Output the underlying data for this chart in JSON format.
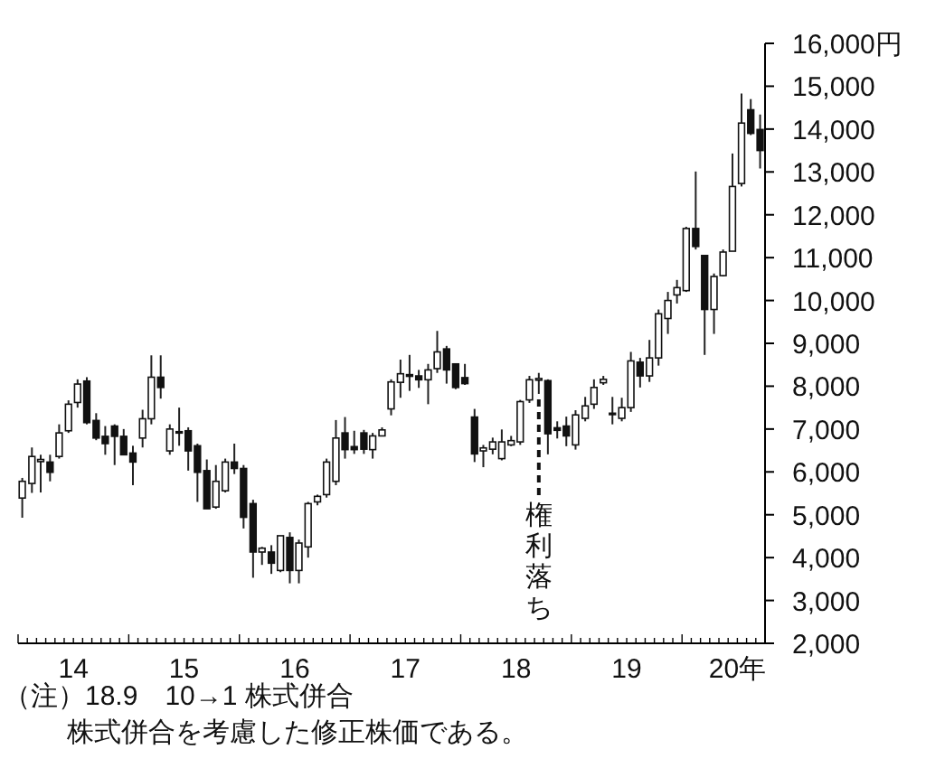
{
  "chart_data": {
    "type": "candlestick",
    "x": [
      "2014-01-15",
      "2014-02-15",
      "2014-03-15",
      "2014-04-15",
      "2014-05-15",
      "2014-06-15",
      "2014-07-15",
      "2014-08-15",
      "2014-09-15",
      "2014-10-15",
      "2014-11-15",
      "2014-12-15",
      "2015-01-15",
      "2015-02-15",
      "2015-03-15",
      "2015-04-15",
      "2015-05-15",
      "2015-06-15",
      "2015-07-15",
      "2015-08-15",
      "2015-09-15",
      "2015-10-15",
      "2015-11-15",
      "2015-12-15",
      "2016-01-15",
      "2016-02-15",
      "2016-03-15",
      "2016-04-15",
      "2016-05-15",
      "2016-06-15",
      "2016-07-15",
      "2016-08-15",
      "2016-09-15",
      "2016-10-15",
      "2016-11-15",
      "2016-12-15",
      "2017-01-15",
      "2017-02-15",
      "2017-03-15",
      "2017-04-15",
      "2017-05-15",
      "2017-06-15",
      "2017-07-15",
      "2017-08-15",
      "2017-09-15",
      "2017-10-15",
      "2017-11-15",
      "2017-12-15",
      "2018-01-15",
      "2018-02-15",
      "2018-03-15",
      "2018-04-15",
      "2018-05-15",
      "2018-06-15",
      "2018-07-15",
      "2018-08-15",
      "2018-09-15",
      "2018-10-15",
      "2018-11-15",
      "2018-12-15",
      "2019-01-15",
      "2019-02-15",
      "2019-03-15",
      "2019-04-15",
      "2019-05-15",
      "2019-06-15",
      "2019-07-15",
      "2019-08-15",
      "2019-09-15",
      "2019-10-15",
      "2019-11-15",
      "2019-12-15",
      "2020-01-15",
      "2020-02-15",
      "2020-03-15",
      "2020-04-15",
      "2020-05-15",
      "2020-06-15",
      "2020-07-15",
      "2020-08-15",
      "2020-09-15"
    ],
    "ohlc": [
      [
        5390,
        5860,
        4930,
        5780
      ],
      [
        5730,
        6570,
        5510,
        6360
      ],
      [
        6240,
        6400,
        5520,
        6290
      ],
      [
        6230,
        6400,
        5780,
        5990
      ],
      [
        6360,
        7110,
        6310,
        6910
      ],
      [
        6960,
        7670,
        6910,
        7580
      ],
      [
        7620,
        8160,
        7500,
        8050
      ],
      [
        8120,
        8210,
        7110,
        7150
      ],
      [
        7200,
        7370,
        6740,
        6790
      ],
      [
        6830,
        7070,
        6400,
        6660
      ],
      [
        7070,
        7110,
        6160,
        6830
      ],
      [
        6830,
        7000,
        6400,
        6400
      ],
      [
        6440,
        6610,
        5690,
        6230
      ],
      [
        6790,
        7450,
        6570,
        7240
      ],
      [
        7240,
        8720,
        7110,
        8210
      ],
      [
        8210,
        8720,
        7710,
        7970
      ],
      [
        6490,
        7110,
        6400,
        7000
      ],
      [
        6910,
        7500,
        6610,
        6940
      ],
      [
        6960,
        7040,
        6030,
        6490
      ],
      [
        6610,
        6660,
        5300,
        5990
      ],
      [
        6030,
        6290,
        5140,
        5140
      ],
      [
        5180,
        6160,
        5140,
        5780
      ],
      [
        5560,
        6310,
        5520,
        6230
      ],
      [
        6230,
        6660,
        5950,
        6080
      ],
      [
        6080,
        6160,
        4680,
        4940
      ],
      [
        5260,
        5350,
        3530,
        4130
      ],
      [
        4130,
        4250,
        3830,
        4220
      ],
      [
        4130,
        4290,
        3620,
        3870
      ],
      [
        3700,
        4510,
        3660,
        4510
      ],
      [
        4470,
        4590,
        3400,
        3700
      ],
      [
        3700,
        4420,
        3400,
        4340
      ],
      [
        4250,
        5300,
        4000,
        5260
      ],
      [
        5300,
        5470,
        5220,
        5430
      ],
      [
        5470,
        6310,
        5400,
        6230
      ],
      [
        5780,
        7210,
        5690,
        6790
      ],
      [
        6910,
        7280,
        6310,
        6520
      ],
      [
        6590,
        6960,
        6420,
        6520
      ],
      [
        6910,
        6980,
        6420,
        6530
      ],
      [
        6520,
        6910,
        6310,
        6840
      ],
      [
        6840,
        7040,
        6830,
        6980
      ],
      [
        7470,
        8160,
        7320,
        8100
      ],
      [
        8090,
        8620,
        7730,
        8290
      ],
      [
        8270,
        8730,
        7890,
        8230
      ],
      [
        8240,
        8380,
        7960,
        8150
      ],
      [
        8150,
        8520,
        7580,
        8380
      ],
      [
        8410,
        9290,
        8310,
        8800
      ],
      [
        8870,
        8940,
        8060,
        8380
      ],
      [
        8520,
        8520,
        7930,
        7970
      ],
      [
        8200,
        8520,
        8030,
        8060
      ],
      [
        7280,
        7470,
        6230,
        6420
      ],
      [
        6490,
        6630,
        6110,
        6560
      ],
      [
        6530,
        6800,
        6410,
        6700
      ],
      [
        6310,
        6990,
        6270,
        6700
      ],
      [
        6630,
        6840,
        6600,
        6730
      ],
      [
        6700,
        7680,
        6630,
        7640
      ],
      [
        7680,
        8240,
        7610,
        8150
      ],
      [
        8140,
        8310,
        7820,
        8180
      ],
      [
        8130,
        8160,
        6410,
        6890
      ],
      [
        7030,
        7180,
        6780,
        6970
      ],
      [
        7070,
        7290,
        6600,
        6840
      ],
      [
        6630,
        7440,
        6520,
        7330
      ],
      [
        7250,
        7750,
        7180,
        7540
      ],
      [
        7580,
        8160,
        7470,
        7970
      ],
      [
        8080,
        8240,
        8030,
        8160
      ],
      [
        7370,
        7750,
        7110,
        7360
      ],
      [
        7250,
        7730,
        7180,
        7500
      ],
      [
        7500,
        8800,
        7400,
        8590
      ],
      [
        8560,
        8660,
        7970,
        8240
      ],
      [
        8240,
        9080,
        8100,
        8660
      ],
      [
        8660,
        9790,
        8480,
        9690
      ],
      [
        9580,
        10200,
        9220,
        10000
      ],
      [
        10130,
        10480,
        9930,
        10300
      ],
      [
        10230,
        11720,
        10200,
        11680
      ],
      [
        11680,
        13010,
        11190,
        11260
      ],
      [
        11050,
        11050,
        8730,
        9790
      ],
      [
        9790,
        10630,
        9220,
        10560
      ],
      [
        10580,
        11190,
        10560,
        11130
      ],
      [
        11150,
        13430,
        11150,
        12660
      ],
      [
        12730,
        14830,
        12660,
        14140
      ],
      [
        14450,
        14700,
        13860,
        13900
      ],
      [
        13990,
        14340,
        13080,
        13500
      ]
    ],
    "xlim": [
      "2014-01-01",
      "2020-10-01"
    ],
    "ylim": [
      2000,
      16000
    ],
    "xticks": [
      {
        "value": "2014-07-01",
        "label": "14"
      },
      {
        "value": "2015-07-01",
        "label": "15"
      },
      {
        "value": "2016-07-01",
        "label": "16"
      },
      {
        "value": "2017-07-01",
        "label": "17"
      },
      {
        "value": "2018-07-01",
        "label": "18"
      },
      {
        "value": "2019-07-01",
        "label": "19"
      },
      {
        "value": "2020-07-01",
        "label": "20年"
      }
    ],
    "yticks": [
      {
        "value": 2000,
        "label": "2,000"
      },
      {
        "value": 3000,
        "label": "3,000"
      },
      {
        "value": 4000,
        "label": "4,000"
      },
      {
        "value": 5000,
        "label": "5,000"
      },
      {
        "value": 6000,
        "label": "6,000"
      },
      {
        "value": 7000,
        "label": "7,000"
      },
      {
        "value": 8000,
        "label": "8,000"
      },
      {
        "value": 9000,
        "label": "9,000"
      },
      {
        "value": 10000,
        "label": "10,000"
      },
      {
        "value": 11000,
        "label": "11,000"
      },
      {
        "value": 12000,
        "label": "12,000"
      },
      {
        "value": 13000,
        "label": "13,000"
      },
      {
        "value": 14000,
        "label": "14,000"
      },
      {
        "value": 15000,
        "label": "15,000"
      },
      {
        "value": 16000,
        "label": "16,000円"
      }
    ],
    "ref_lines": [
      {
        "axis": "x",
        "value": "2018-09-15",
        "label": "権利落ち",
        "line_style": "dashed"
      }
    ],
    "annotations": [
      "（注）18.9　10→1 株式併合",
      "株式併合を考慮した修正株価である。"
    ]
  }
}
